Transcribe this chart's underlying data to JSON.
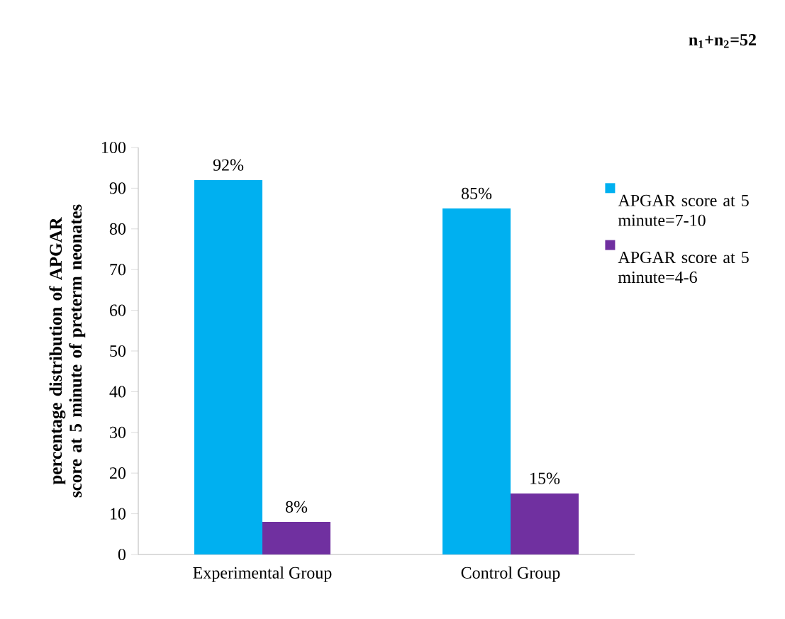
{
  "chart_data": {
    "type": "bar",
    "ylabel": "percentage distribution of APGAR score at 5 minute of preterm neonates",
    "categories": [
      "Experimental Group",
      "Control Group"
    ],
    "series": [
      {
        "name": "APGAR score at 5 minute=7-10",
        "color": "#00b0f0",
        "values": [
          92,
          85
        ],
        "value_labels": [
          "92%",
          "85%"
        ]
      },
      {
        "name": "APGAR score at 5 minute=4-6",
        "color": "#7030a0",
        "values": [
          8,
          15
        ],
        "value_labels": [
          "8%",
          "15%"
        ]
      }
    ],
    "ylim": [
      0,
      100
    ],
    "yticks": [
      0,
      10,
      20,
      30,
      40,
      50,
      60,
      70,
      80,
      90,
      100
    ],
    "legend": "right",
    "annotations": [
      "n$_{1}$+n$_{2}$=52"
    ]
  }
}
